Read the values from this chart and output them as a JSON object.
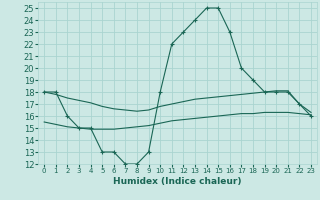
{
  "title": "",
  "xlabel": "Humidex (Indice chaleur)",
  "bg_color": "#cce8e4",
  "grid_color": "#aad4d0",
  "line_color": "#1a6655",
  "xlim": [
    -0.5,
    23.5
  ],
  "ylim": [
    12,
    25.5
  ],
  "xticks": [
    0,
    1,
    2,
    3,
    4,
    5,
    6,
    7,
    8,
    9,
    10,
    11,
    12,
    13,
    14,
    15,
    16,
    17,
    18,
    19,
    20,
    21,
    22,
    23
  ],
  "yticks": [
    12,
    13,
    14,
    15,
    16,
    17,
    18,
    19,
    20,
    21,
    22,
    23,
    24,
    25
  ],
  "series1_x": [
    0,
    1,
    2,
    3,
    4,
    5,
    6,
    7,
    8,
    9,
    10,
    11,
    12,
    13,
    14,
    15,
    16,
    17,
    18,
    19,
    20,
    21,
    22,
    23
  ],
  "series1_y": [
    18,
    18,
    16,
    15,
    15,
    13,
    13,
    12,
    12,
    13,
    18,
    22,
    23,
    24,
    25,
    25,
    23,
    20,
    19,
    18,
    18,
    18,
    17,
    16
  ],
  "series2_x": [
    0,
    1,
    2,
    3,
    4,
    5,
    6,
    7,
    8,
    9,
    10,
    11,
    12,
    13,
    14,
    15,
    16,
    17,
    18,
    19,
    20,
    21,
    22,
    23
  ],
  "series2_y": [
    18,
    17.8,
    17.5,
    17.3,
    17.1,
    16.8,
    16.6,
    16.5,
    16.4,
    16.5,
    16.8,
    17.0,
    17.2,
    17.4,
    17.5,
    17.6,
    17.7,
    17.8,
    17.9,
    18.0,
    18.1,
    18.1,
    17.0,
    16.3
  ],
  "series3_x": [
    0,
    1,
    2,
    3,
    4,
    5,
    6,
    7,
    8,
    9,
    10,
    11,
    12,
    13,
    14,
    15,
    16,
    17,
    18,
    19,
    20,
    21,
    22,
    23
  ],
  "series3_y": [
    15.5,
    15.3,
    15.1,
    15.0,
    14.9,
    14.9,
    14.9,
    15.0,
    15.1,
    15.2,
    15.4,
    15.6,
    15.7,
    15.8,
    15.9,
    16.0,
    16.1,
    16.2,
    16.2,
    16.3,
    16.3,
    16.3,
    16.2,
    16.1
  ]
}
